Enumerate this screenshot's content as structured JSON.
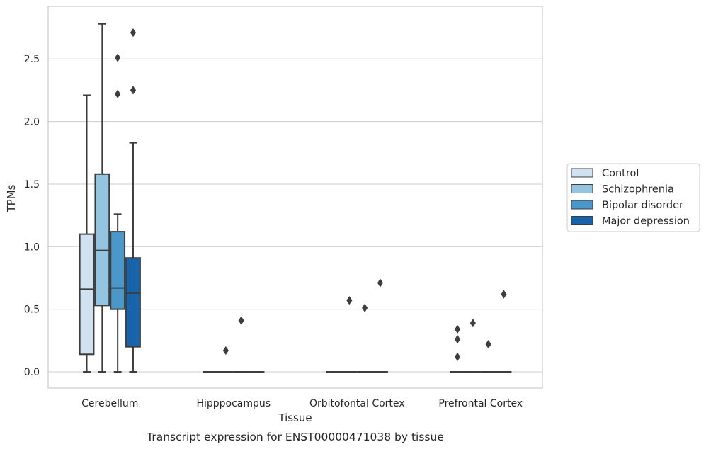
{
  "chart_data": {
    "type": "boxplot",
    "xlabel": "Tissue",
    "ylabel": "TPMs",
    "caption": "Transcript expression for ENST00000471038 by tissue",
    "ylim": [
      -0.13,
      2.92
    ],
    "yticks": [
      "0.0",
      "0.5",
      "1.0",
      "1.5",
      "2.0",
      "2.5"
    ],
    "grid": "horizontal",
    "legend_position": "right",
    "categories": [
      "Cerebellum",
      "Hipppocampus",
      "Orbitofontal Cortex",
      "Prefrontal Cortex"
    ],
    "series": [
      {
        "name": "Control",
        "color": "#d0e1f2",
        "boxes": [
          {
            "q1": 0.14,
            "median": 0.66,
            "q3": 1.1,
            "whisker_low": 0.0,
            "whisker_high": 2.21,
            "outliers": []
          },
          {
            "q1": 0.0,
            "median": 0.0,
            "q3": 0.0,
            "whisker_low": 0.0,
            "whisker_high": 0.0,
            "outliers": []
          },
          {
            "q1": 0.0,
            "median": 0.0,
            "q3": 0.0,
            "whisker_low": 0.0,
            "whisker_high": 0.0,
            "outliers": []
          },
          {
            "q1": 0.0,
            "median": 0.0,
            "q3": 0.0,
            "whisker_low": 0.0,
            "whisker_high": 0.0,
            "outliers": [
              0.12,
              0.26,
              0.34
            ]
          }
        ]
      },
      {
        "name": "Schizophrenia",
        "color": "#94c4df",
        "boxes": [
          {
            "q1": 0.53,
            "median": 0.97,
            "q3": 1.58,
            "whisker_low": 0.0,
            "whisker_high": 2.78,
            "outliers": []
          },
          {
            "q1": 0.0,
            "median": 0.0,
            "q3": 0.0,
            "whisker_low": 0.0,
            "whisker_high": 0.0,
            "outliers": [
              0.17
            ]
          },
          {
            "q1": 0.0,
            "median": 0.0,
            "q3": 0.0,
            "whisker_low": 0.0,
            "whisker_high": 0.0,
            "outliers": [
              0.57
            ]
          },
          {
            "q1": 0.0,
            "median": 0.0,
            "q3": 0.0,
            "whisker_low": 0.0,
            "whisker_high": 0.0,
            "outliers": [
              0.39
            ]
          }
        ]
      },
      {
        "name": "Bipolar disorder",
        "color": "#4a98c9",
        "boxes": [
          {
            "q1": 0.5,
            "median": 0.67,
            "q3": 1.12,
            "whisker_low": 0.0,
            "whisker_high": 1.26,
            "outliers": [
              2.22,
              2.51
            ]
          },
          {
            "q1": 0.0,
            "median": 0.0,
            "q3": 0.0,
            "whisker_low": 0.0,
            "whisker_high": 0.0,
            "outliers": [
              0.41
            ]
          },
          {
            "q1": 0.0,
            "median": 0.0,
            "q3": 0.0,
            "whisker_low": 0.0,
            "whisker_high": 0.0,
            "outliers": [
              0.51
            ]
          },
          {
            "q1": 0.0,
            "median": 0.0,
            "q3": 0.0,
            "whisker_low": 0.0,
            "whisker_high": 0.0,
            "outliers": [
              0.22
            ]
          }
        ]
      },
      {
        "name": "Major depression",
        "color": "#1764ab",
        "boxes": [
          {
            "q1": 0.2,
            "median": 0.63,
            "q3": 0.91,
            "whisker_low": 0.0,
            "whisker_high": 1.83,
            "outliers": [
              2.25,
              2.71
            ]
          },
          {
            "q1": 0.0,
            "median": 0.0,
            "q3": 0.0,
            "whisker_low": 0.0,
            "whisker_high": 0.0,
            "outliers": []
          },
          {
            "q1": 0.0,
            "median": 0.0,
            "q3": 0.0,
            "whisker_low": 0.0,
            "whisker_high": 0.0,
            "outliers": [
              0.71
            ]
          },
          {
            "q1": 0.0,
            "median": 0.0,
            "q3": 0.0,
            "whisker_low": 0.0,
            "whisker_high": 0.0,
            "outliers": [
              0.62
            ]
          }
        ]
      }
    ]
  }
}
